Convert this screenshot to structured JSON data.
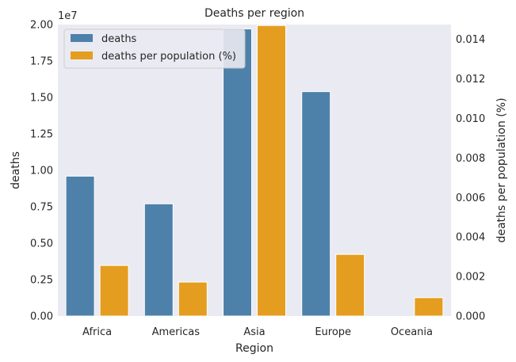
{
  "chart_data": {
    "type": "bar",
    "title": "Deaths per region",
    "xlabel": "Region",
    "ylabel_left": "deaths",
    "ylabel_right": "deaths per population (%)",
    "left_axis_exponent": "1e7",
    "categories": [
      "Africa",
      "Americas",
      "Asia",
      "Europe",
      "Oceania"
    ],
    "series": [
      {
        "name": "deaths",
        "axis": "left",
        "color": "#4e81aa",
        "values": [
          9600000,
          7700000,
          19700000,
          15400000,
          0
        ]
      },
      {
        "name": "deaths per population (%)",
        "axis": "right",
        "color": "#e49d1f",
        "values": [
          0.00256,
          0.00172,
          0.0147,
          0.00312,
          0.00093
        ]
      }
    ],
    "ylim_left": [
      0,
      20000000
    ],
    "ylim_right": [
      0,
      0.01475
    ],
    "left_ticks": [
      0,
      2500000,
      5000000,
      7500000,
      10000000,
      12500000,
      15000000,
      17500000,
      20000000
    ],
    "left_tick_labels": [
      "0.00",
      "0.25",
      "0.50",
      "0.75",
      "1.00",
      "1.25",
      "1.50",
      "1.75",
      "2.00"
    ],
    "right_ticks": [
      0,
      0.002,
      0.004,
      0.006,
      0.008,
      0.01,
      0.012,
      0.014
    ],
    "right_tick_labels": [
      "0.000",
      "0.002",
      "0.004",
      "0.006",
      "0.008",
      "0.010",
      "0.012",
      "0.014"
    ],
    "background": "#eaeaf2",
    "grid": false,
    "legend_position": "top-left"
  }
}
